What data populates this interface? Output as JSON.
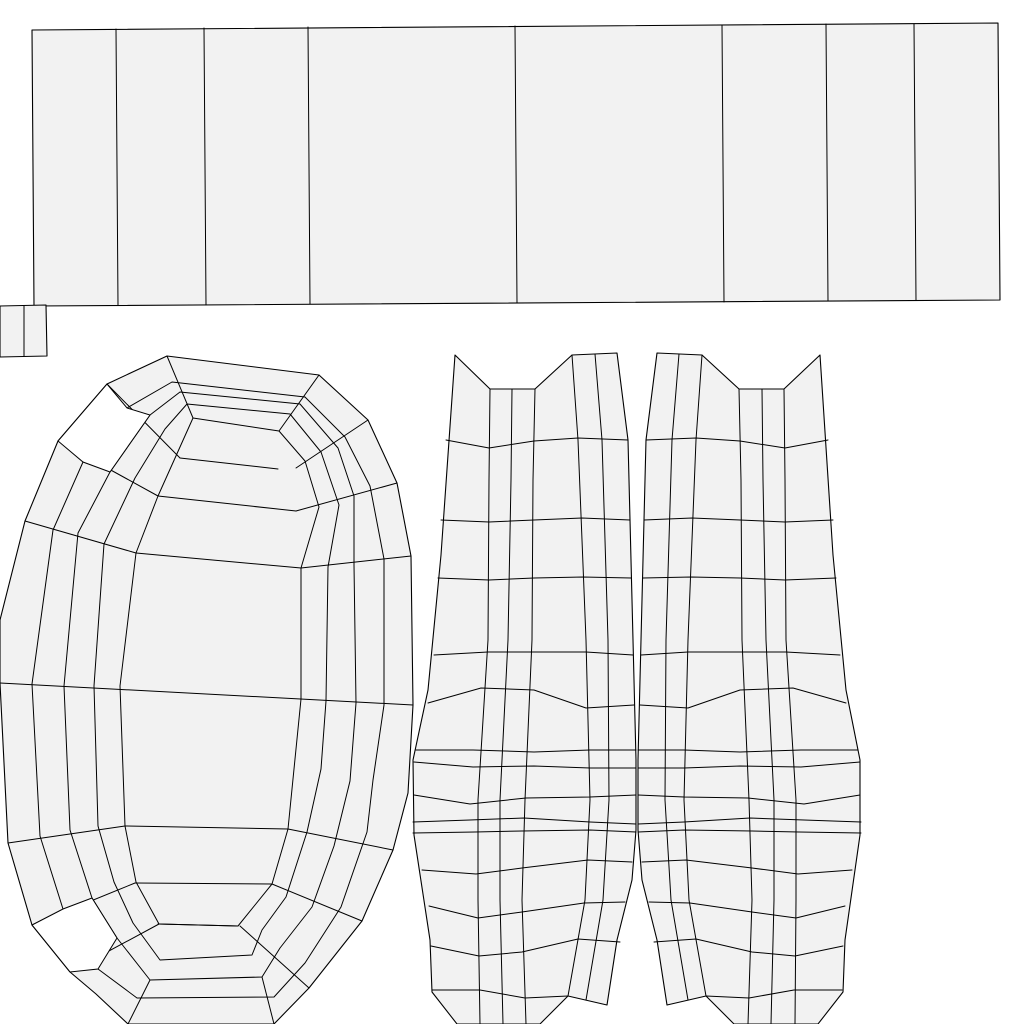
{
  "canvas": {
    "background_color": "#ffffff",
    "face_fill_color": "#f2f2f2",
    "edge_color": "#000000"
  },
  "islands": [
    {
      "name": "top-strip",
      "description_visible_text": ""
    },
    {
      "name": "small-square-pair",
      "description_visible_text": ""
    },
    {
      "name": "oval-cap",
      "description_visible_text": ""
    },
    {
      "name": "left-trouser-leg",
      "description_visible_text": ""
    },
    {
      "name": "right-trouser-leg",
      "description_visible_text": ""
    }
  ]
}
